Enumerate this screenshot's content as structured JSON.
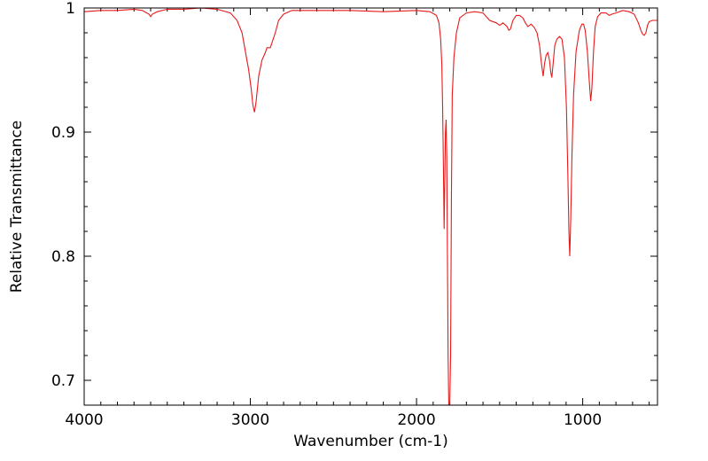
{
  "chart_data": {
    "type": "line",
    "title": "",
    "xlabel": "Wavenumber (cm-1)",
    "ylabel": "Relative Transmittance",
    "xlim": [
      4000,
      550
    ],
    "ylim": [
      0.68,
      1.0
    ],
    "x_reversed": true,
    "grid": false,
    "x_ticks": [
      {
        "value": 4000,
        "label": "4000"
      },
      {
        "value": 3000,
        "label": "3000"
      },
      {
        "value": 2000,
        "label": "2000"
      },
      {
        "value": 1000,
        "label": "1000"
      }
    ],
    "y_ticks": [
      {
        "value": 1.0,
        "label": "1"
      },
      {
        "value": 0.9,
        "label": "0.9"
      },
      {
        "value": 0.8,
        "label": "0.8"
      },
      {
        "value": 0.7,
        "label": "0.7"
      }
    ],
    "series": [
      {
        "color": "#e8191b",
        "points": [
          [
            4000,
            0.997
          ],
          [
            3900,
            0.998
          ],
          [
            3800,
            0.998
          ],
          [
            3700,
            0.999
          ],
          [
            3650,
            0.998
          ],
          [
            3610,
            0.995
          ],
          [
            3600,
            0.993
          ],
          [
            3590,
            0.995
          ],
          [
            3560,
            0.997
          ],
          [
            3500,
            0.999
          ],
          [
            3400,
            0.999
          ],
          [
            3300,
            1.0
          ],
          [
            3200,
            0.999
          ],
          [
            3120,
            0.996
          ],
          [
            3080,
            0.99
          ],
          [
            3050,
            0.98
          ],
          [
            3030,
            0.965
          ],
          [
            3010,
            0.95
          ],
          [
            2995,
            0.935
          ],
          [
            2985,
            0.922
          ],
          [
            2975,
            0.916
          ],
          [
            2965,
            0.925
          ],
          [
            2950,
            0.945
          ],
          [
            2930,
            0.958
          ],
          [
            2910,
            0.964
          ],
          [
            2900,
            0.968
          ],
          [
            2890,
            0.968
          ],
          [
            2880,
            0.968
          ],
          [
            2870,
            0.972
          ],
          [
            2850,
            0.98
          ],
          [
            2830,
            0.99
          ],
          [
            2800,
            0.995
          ],
          [
            2750,
            0.998
          ],
          [
            2600,
            0.998
          ],
          [
            2400,
            0.998
          ],
          [
            2200,
            0.997
          ],
          [
            2000,
            0.998
          ],
          [
            1920,
            0.997
          ],
          [
            1880,
            0.994
          ],
          [
            1865,
            0.988
          ],
          [
            1855,
            0.975
          ],
          [
            1848,
            0.955
          ],
          [
            1843,
            0.92
          ],
          [
            1838,
            0.87
          ],
          [
            1834,
            0.822
          ],
          [
            1830,
            0.86
          ],
          [
            1826,
            0.9
          ],
          [
            1822,
            0.91
          ],
          [
            1818,
            0.88
          ],
          [
            1814,
            0.8
          ],
          [
            1810,
            0.72
          ],
          [
            1806,
            0.68
          ],
          [
            1800,
            0.68
          ],
          [
            1795,
            0.72
          ],
          [
            1790,
            0.85
          ],
          [
            1785,
            0.93
          ],
          [
            1775,
            0.96
          ],
          [
            1760,
            0.98
          ],
          [
            1740,
            0.992
          ],
          [
            1700,
            0.996
          ],
          [
            1650,
            0.997
          ],
          [
            1600,
            0.996
          ],
          [
            1560,
            0.99
          ],
          [
            1520,
            0.988
          ],
          [
            1500,
            0.986
          ],
          [
            1480,
            0.988
          ],
          [
            1455,
            0.985
          ],
          [
            1445,
            0.982
          ],
          [
            1435,
            0.983
          ],
          [
            1420,
            0.99
          ],
          [
            1400,
            0.994
          ],
          [
            1380,
            0.994
          ],
          [
            1360,
            0.992
          ],
          [
            1345,
            0.988
          ],
          [
            1330,
            0.985
          ],
          [
            1320,
            0.986
          ],
          [
            1310,
            0.987
          ],
          [
            1290,
            0.984
          ],
          [
            1275,
            0.98
          ],
          [
            1260,
            0.97
          ],
          [
            1248,
            0.955
          ],
          [
            1238,
            0.945
          ],
          [
            1230,
            0.955
          ],
          [
            1220,
            0.962
          ],
          [
            1210,
            0.964
          ],
          [
            1200,
            0.958
          ],
          [
            1192,
            0.948
          ],
          [
            1186,
            0.944
          ],
          [
            1178,
            0.955
          ],
          [
            1168,
            0.97
          ],
          [
            1155,
            0.975
          ],
          [
            1140,
            0.977
          ],
          [
            1125,
            0.975
          ],
          [
            1110,
            0.96
          ],
          [
            1098,
            0.92
          ],
          [
            1090,
            0.87
          ],
          [
            1083,
            0.82
          ],
          [
            1078,
            0.8
          ],
          [
            1072,
            0.83
          ],
          [
            1065,
            0.88
          ],
          [
            1055,
            0.93
          ],
          [
            1040,
            0.965
          ],
          [
            1020,
            0.982
          ],
          [
            1005,
            0.987
          ],
          [
            995,
            0.987
          ],
          [
            985,
            0.982
          ],
          [
            972,
            0.965
          ],
          [
            960,
            0.94
          ],
          [
            952,
            0.925
          ],
          [
            945,
            0.935
          ],
          [
            935,
            0.965
          ],
          [
            925,
            0.985
          ],
          [
            910,
            0.993
          ],
          [
            890,
            0.996
          ],
          [
            860,
            0.996
          ],
          [
            840,
            0.994
          ],
          [
            825,
            0.995
          ],
          [
            800,
            0.996
          ],
          [
            760,
            0.998
          ],
          [
            720,
            0.997
          ],
          [
            690,
            0.995
          ],
          [
            665,
            0.988
          ],
          [
            650,
            0.982
          ],
          [
            640,
            0.979
          ],
          [
            630,
            0.978
          ],
          [
            620,
            0.98
          ],
          [
            610,
            0.986
          ],
          [
            600,
            0.989
          ],
          [
            580,
            0.99
          ],
          [
            550,
            0.99
          ]
        ]
      }
    ]
  }
}
